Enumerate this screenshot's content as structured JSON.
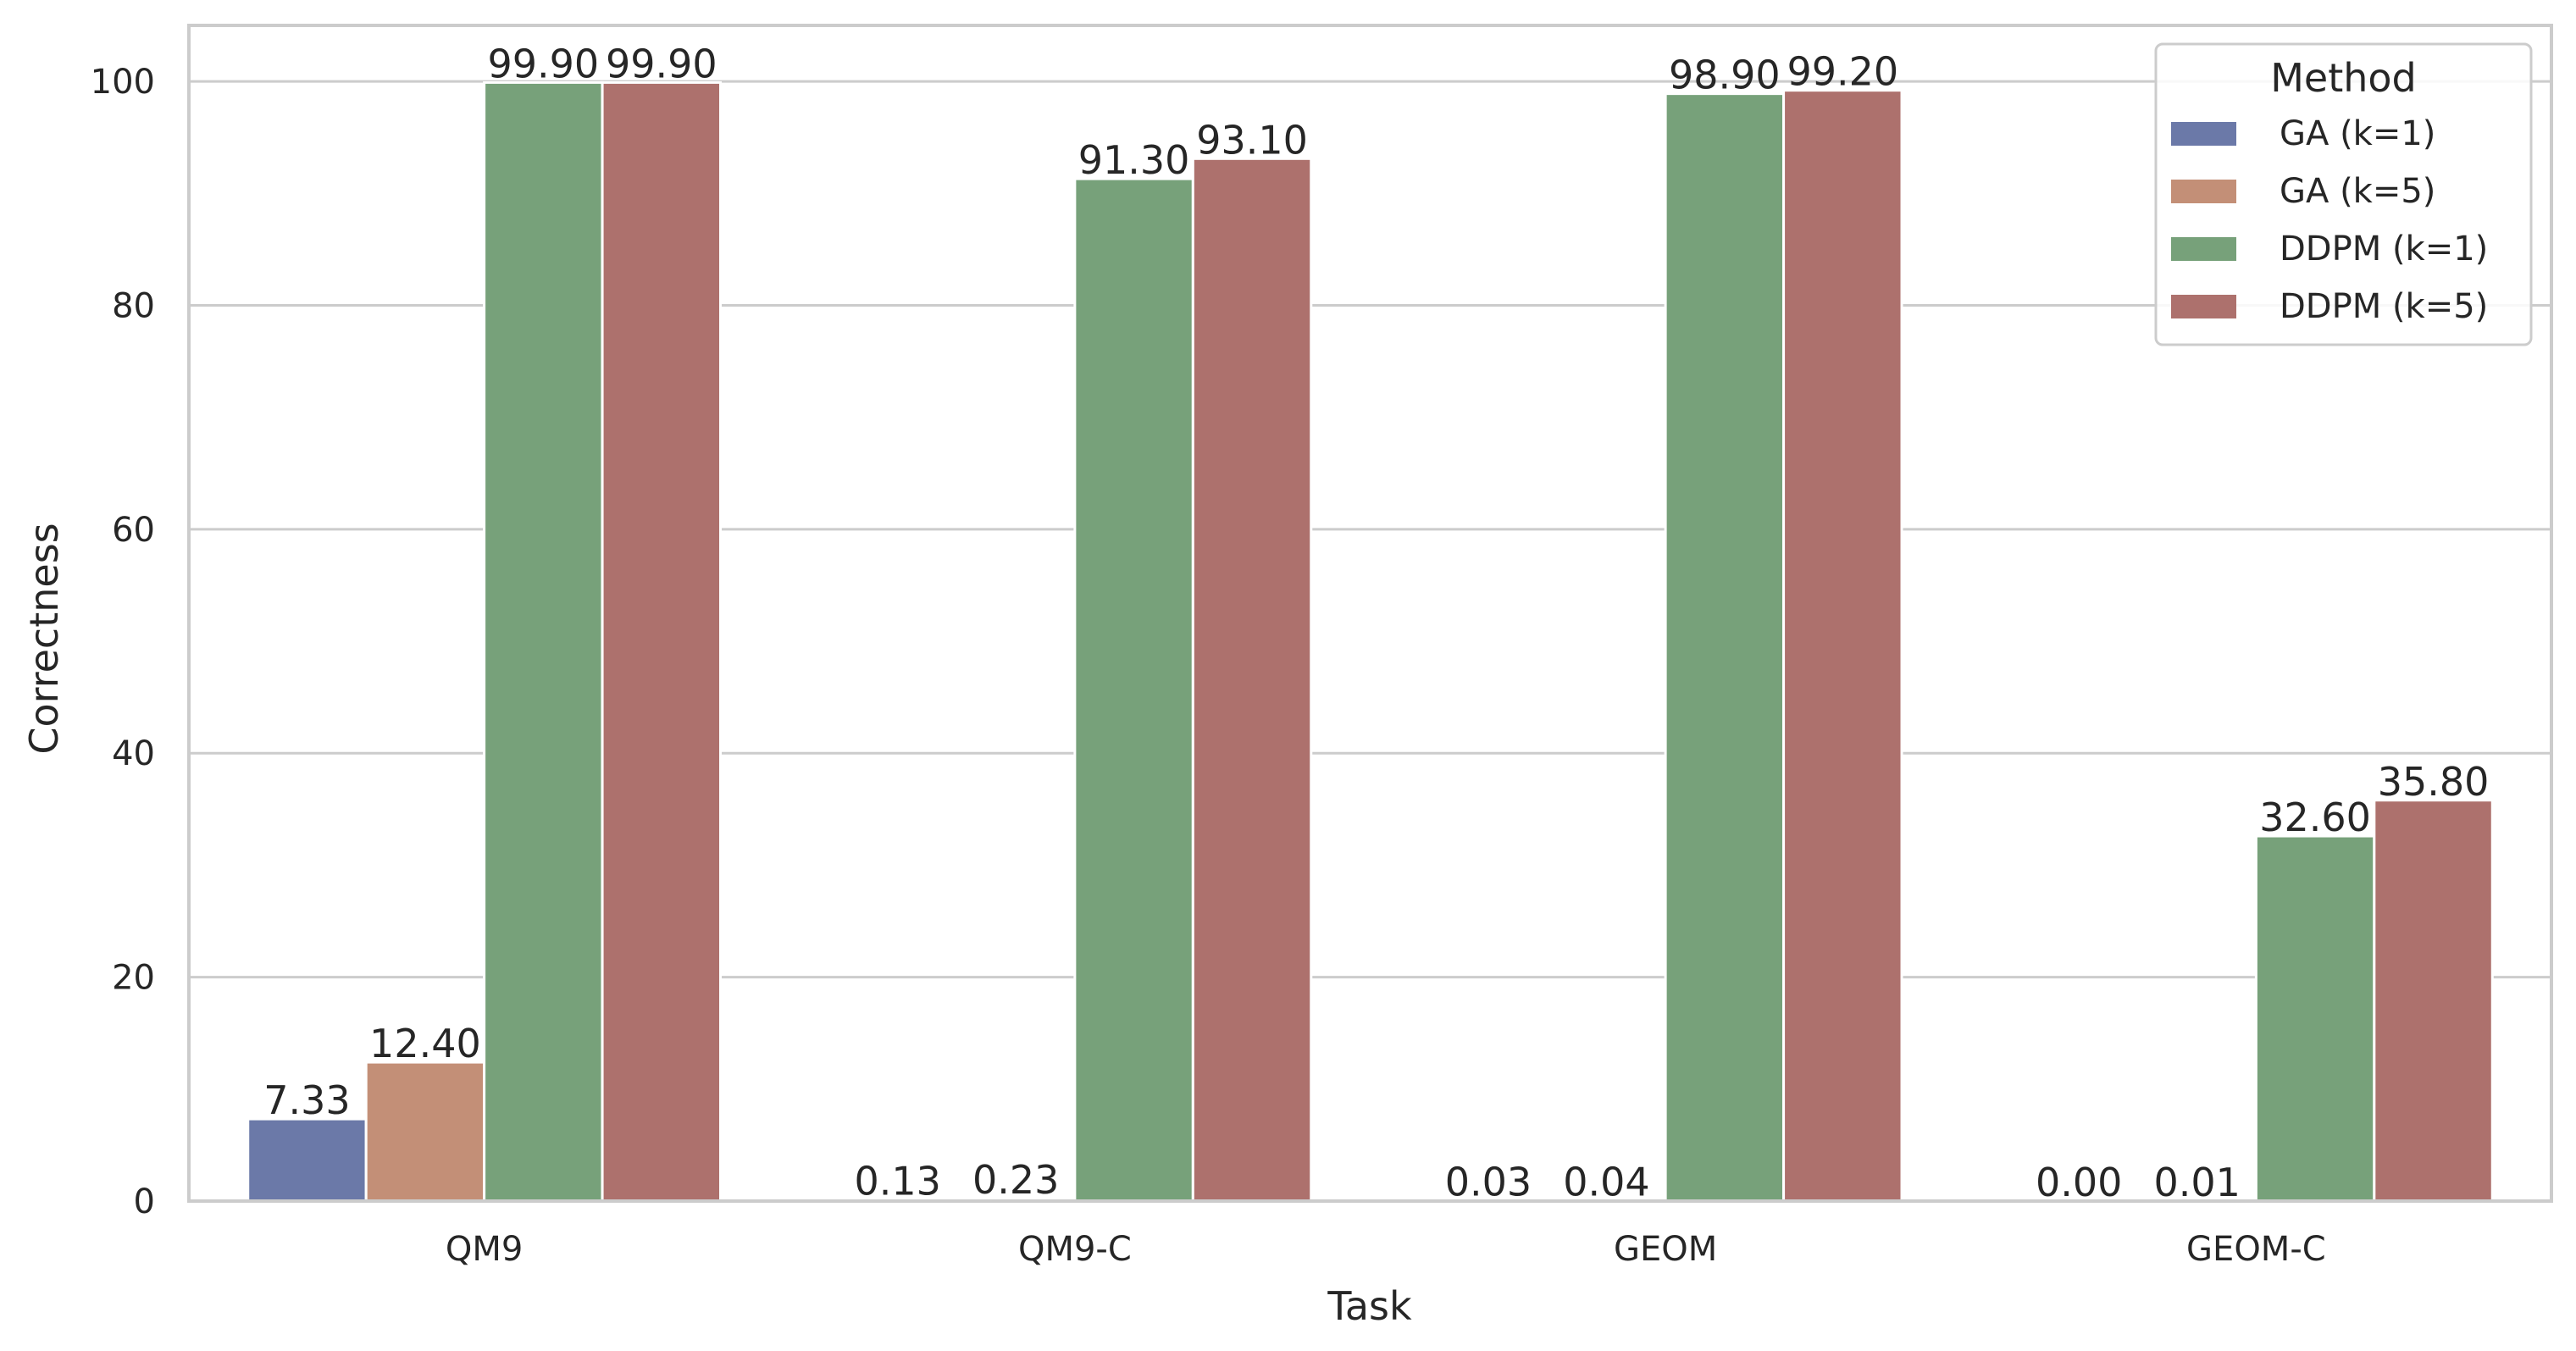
{
  "chart_data": {
    "type": "bar",
    "xlabel": "Task",
    "ylabel": "Correctness",
    "categories": [
      "QM9",
      "QM9-C",
      "GEOM",
      "GEOM-C"
    ],
    "ylim": [
      0,
      105
    ],
    "yticks": [
      0,
      20,
      40,
      60,
      80,
      100
    ],
    "grid": true,
    "legend": {
      "title": "Method",
      "placement": "top-right"
    },
    "series": [
      {
        "name": "GA (k=1)",
        "color": "#6b79a8",
        "values": [
          7.33,
          0.13,
          0.03,
          0.0
        ],
        "labels": [
          "7.33",
          "0.13",
          "0.03",
          "0.00"
        ]
      },
      {
        "name": "GA (k=5)",
        "color": "#c38f77",
        "values": [
          12.4,
          0.23,
          0.04,
          0.01
        ],
        "labels": [
          "12.40",
          "0.23",
          "0.04",
          "0.01"
        ]
      },
      {
        "name": "DDPM (k=1)",
        "color": "#77a17a",
        "values": [
          99.9,
          91.3,
          98.9,
          32.6
        ],
        "labels": [
          "99.90",
          "91.30",
          "98.90",
          "32.60"
        ]
      },
      {
        "name": "DDPM (k=5)",
        "color": "#ad716d",
        "values": [
          99.9,
          93.1,
          99.2,
          35.8
        ],
        "labels": [
          "99.90",
          "93.10",
          "99.20",
          "35.80"
        ]
      }
    ]
  }
}
